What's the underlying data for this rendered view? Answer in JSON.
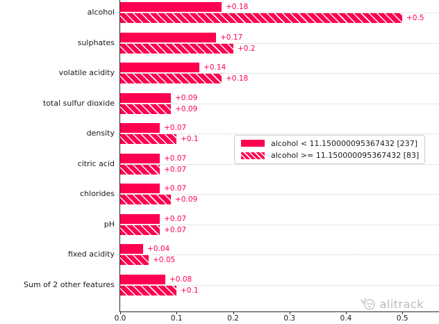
{
  "chart_data": {
    "type": "bar",
    "orientation": "horizontal",
    "title": "",
    "xlabel": "",
    "ylabel": "",
    "categories": [
      "alcohol",
      "sulphates",
      "volatile acidity",
      "total sulfur dioxide",
      "density",
      "citric acid",
      "chlorides",
      "pH",
      "fixed acidity",
      "Sum of 2 other features"
    ],
    "series": [
      {
        "name": "alcohol < 11.150000095367432 [237]",
        "style": "solid",
        "values": [
          0.18,
          0.17,
          0.14,
          0.09,
          0.07,
          0.07,
          0.07,
          0.07,
          0.04,
          0.08
        ],
        "labels": [
          "+0.18",
          "+0.17",
          "+0.14",
          "+0.09",
          "+0.07",
          "+0.07",
          "+0.07",
          "+0.07",
          "+0.04",
          "+0.08"
        ]
      },
      {
        "name": "alcohol >= 11.150000095367432 [83]",
        "style": "hatched",
        "values": [
          0.5,
          0.2,
          0.18,
          0.09,
          0.1,
          0.07,
          0.09,
          0.07,
          0.05,
          0.1
        ],
        "labels": [
          "+0.5",
          "+0.2",
          "+0.18",
          "+0.09",
          "+0.1",
          "+0.07",
          "+0.09",
          "+0.07",
          "+0.05",
          "+0.1"
        ]
      }
    ],
    "xticks": [
      "0.0",
      "0.1",
      "0.2",
      "0.3",
      "0.4",
      "0.5"
    ],
    "xlim": [
      0,
      0.565
    ],
    "bar_color": "#ff0051",
    "grid": "horizontal-dotted",
    "legend_position": "center-right"
  },
  "watermark": {
    "text": "alitrack"
  }
}
